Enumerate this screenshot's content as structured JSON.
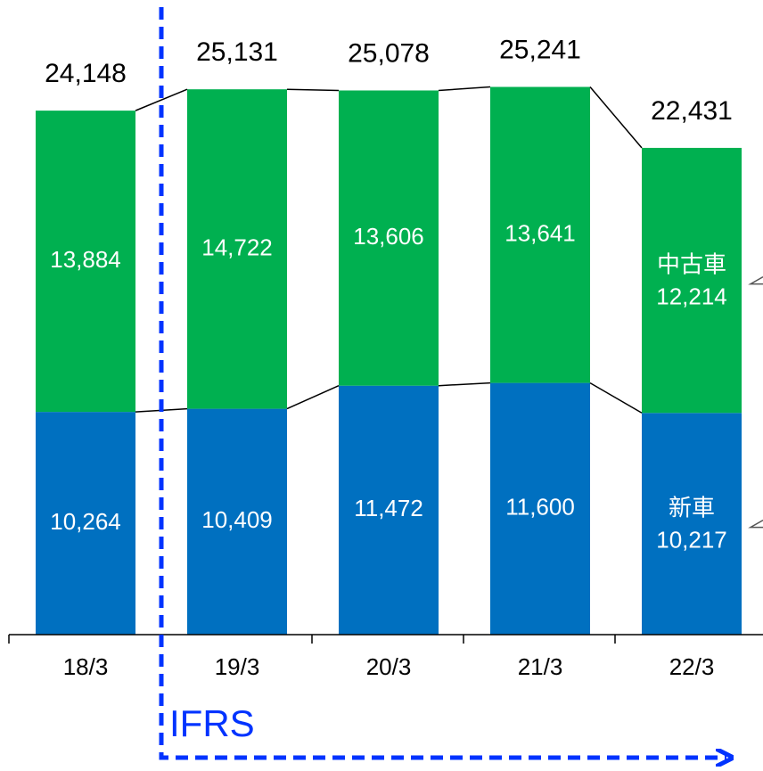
{
  "chart_data": {
    "type": "stacked_bar",
    "categories": [
      "18/3",
      "19/3",
      "20/3",
      "21/3",
      "22/3"
    ],
    "series": [
      {
        "name": "新車",
        "color": "#0070c0",
        "values": [
          10264,
          10409,
          11472,
          11600,
          10217
        ]
      },
      {
        "name": "中古車",
        "color": "#00b050",
        "values": [
          13884,
          14722,
          13606,
          13641,
          12214
        ]
      }
    ],
    "totals": [
      24148,
      25131,
      25078,
      25241,
      22431
    ],
    "value_labels": [
      [
        "10,264",
        "10,409",
        "11,472",
        "11,600",
        "10,217"
      ],
      [
        "13,884",
        "14,722",
        "13,606",
        "13,641",
        "12,214"
      ]
    ],
    "total_labels": [
      "24,148",
      "25,131",
      "25,078",
      "25,241",
      "22,431"
    ],
    "ylim": [
      0,
      29000
    ],
    "annotation": "IFRS"
  }
}
